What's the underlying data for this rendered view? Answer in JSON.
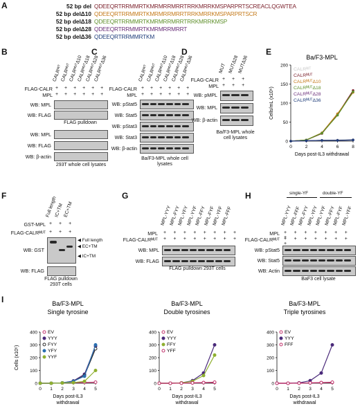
{
  "panels": {
    "A": "A",
    "B": "B",
    "C": "C",
    "D": "D",
    "E": "E",
    "F": "F",
    "G": "G",
    "H": "H",
    "I": "I"
  },
  "panelA": {
    "rows": [
      {
        "label": "52 bp del",
        "seq": "QDEEQRTRRMMRTKMRMRRMRRTRRKMRRKMSPARPRTSCREACLQGWTEA",
        "color": "#7a1f2a"
      },
      {
        "label": "52 bp delΔ10",
        "seq": "QDEEQRTRRMMRTKMRMRRMRRTRRKMRRKMSPARPRTSCR",
        "color": "#c47a1a"
      },
      {
        "label": "52 bp delΔ18",
        "seq": "QDEEQRTRRMMRTKMRMRRMRRTRRKMRRKMSP",
        "color": "#5e8f2a"
      },
      {
        "label": "52 bp delΔ28",
        "seq": "QDEEQRTRRMMRTKMRMRRMRRT",
        "color": "#6a2f7a"
      },
      {
        "label": "52 bp delΔ36",
        "seq": "QDEEQRTRRMMRTKM",
        "color": "#1f3d7a"
      }
    ]
  },
  "panelB": {
    "lanes": [
      "CALRᵂᵀ",
      "CALRᴹᵁᵀ",
      "CALRᴹᵁᵀΔ10",
      "CALRᴹᵁᵀΔ18",
      "CALRᴹᵁᵀΔ28",
      "CALRᴹᵁᵀΔ36"
    ],
    "flag": "FLAG-CALR",
    "mpl": "MPL",
    "pm": "+ + + + + +",
    "wb1": "WB: MPL",
    "wb2": "WB: FLAG",
    "cap1": "FLAG pulldown",
    "wb3": "WB: MPL",
    "wb4": "WB: FLAG",
    "wb5": "WB: β-actin",
    "cap2": "293T whole cell lysates"
  },
  "panelC": {
    "lanes": [
      "CALRᵂᵀ",
      "CALRᴹᵁᵀ",
      "CALRᴹᵁᵀΔ10",
      "CALRᴹᵁᵀΔ18",
      "CALRᴹᵁᵀΔ28",
      "CALRᴹᵁᵀΔ36"
    ],
    "flag": "FLAG-CALR",
    "mpl": "MPL",
    "pm": "+ + + + + +",
    "wbs": [
      "WB: pStat5",
      "WB: Stat5",
      "WB: pStat3",
      "WB: Stat3",
      "WB: β-actin"
    ],
    "cap": "Ba/F3-MPL whole cell lysates"
  },
  "panelD": {
    "lanes": [
      "MUT",
      "MUTΔ28",
      "MUTΔ36"
    ],
    "flag": "FLAG-CALR",
    "mpl": "MPL",
    "pm": "+ + +",
    "wbs": [
      "WB: pMPL",
      "WB: MPL",
      "WB: β-actin"
    ],
    "cap": "Ba/F3-MPL whole cell lysates"
  },
  "panelF": {
    "lanes": [
      "Full length",
      "IC+TM",
      "EC+TM"
    ],
    "gst": "GST-MPL",
    "flag": "FLAG-CALRᴹᵁᵀ",
    "pm1": "+ + +",
    "pm2": "+ + +",
    "wbs": [
      "WB: GST",
      "WB: FLAG"
    ],
    "arrows": [
      "Full length",
      "EC+TM",
      "IC+TM"
    ],
    "cap": "FLAG pulldown 293T cells"
  },
  "panelG": {
    "lanes": [
      "MPL-YYY",
      "MPL-FYY",
      "MPL-YFY",
      "MPL-YYF",
      "MPL-FFY",
      "MPL-FYF",
      "MPL-YFF",
      "MPL-FFF"
    ],
    "mpl": "MPL",
    "flag": "FLAG-CALRᴹᵁᵀ",
    "pm": "+ + + + + + + +",
    "wbs": [
      "WB: MPL",
      "WB: FLAG"
    ],
    "cap": "FLAG pulldown 293T cells"
  },
  "panelH": {
    "lanes": [
      "MPL-YYY",
      "MPL-FFF",
      "MPL-FYY",
      "MPL-YFY",
      "MPL-YYF",
      "MPL-FFY",
      "MPL-FYF",
      "MPL-YFF"
    ],
    "single": "single-YF",
    "double": "double-YF",
    "mpl": "MPL",
    "flag": "FLAG-CALRᴹᵁᵀ",
    "pm": "+ + + + + + + +",
    "wbs": [
      "WB: pStat5",
      "WB: Stat5",
      "WB: Actin"
    ],
    "cap": "BaF3 cell lysate"
  },
  "chartE": {
    "title": "Ba/F3-MPL",
    "ylabel": "Cells/mL (x10⁶)",
    "xlabel": "Days post-IL3 withdrawal",
    "yticks": [
      "0",
      "50",
      "100",
      "150",
      "200"
    ],
    "xticks": [
      "0",
      "2",
      "4",
      "6",
      "8"
    ]
  },
  "chartI": [
    {
      "title1": "Ba/F3-MPL",
      "title2": "Single tyrosine",
      "yticks": [
        "0",
        "100",
        "200",
        "300",
        "400"
      ],
      "xticks": [
        "0",
        "1",
        "2",
        "3",
        "4",
        "5"
      ]
    },
    {
      "title1": "Ba/F3-MPL",
      "title2": "Double tyrosines",
      "yticks": [
        "0",
        "100",
        "200",
        "300",
        "400"
      ],
      "xticks": [
        "0",
        "1",
        "2",
        "3",
        "4",
        "5"
      ]
    },
    {
      "title1": "Ba/F3-MPL",
      "title2": "Triple tyrosines",
      "yticks": [
        "0",
        "100",
        "200",
        "300",
        "400"
      ],
      "xticks": [
        "0",
        "1",
        "2",
        "3",
        "4",
        "5"
      ]
    }
  ],
  "chartIlabels": {
    "ylabel": "Cells (x10⁵)",
    "xlabel1": "Days post-IL3",
    "xlabel2": "withdrawal"
  },
  "chart_data": [
    {
      "type": "line",
      "title": "Ba/F3-MPL",
      "xlabel": "Days post-IL3 withdrawal",
      "ylabel": "Cells/mL (x10⁶)",
      "x": [
        0,
        2,
        4,
        6,
        8
      ],
      "xlim": [
        0,
        8
      ],
      "ylim": [
        0,
        200
      ],
      "series": [
        {
          "name": "CALRᵂᵀ",
          "color": "#c8c8c8",
          "values": [
            0,
            1,
            2,
            3,
            4
          ]
        },
        {
          "name": "CALRᴹᵁᵀ",
          "color": "#7a1f2a",
          "values": [
            0,
            3,
            20,
            70,
            133
          ]
        },
        {
          "name": "CALRᴹᵁᵀΔ10",
          "color": "#c47a1a",
          "values": [
            0,
            3,
            22,
            72,
            128
          ]
        },
        {
          "name": "CALRᴹᵁᵀΔ18",
          "color": "#5e8f2a",
          "values": [
            0,
            3,
            21,
            68,
            130
          ]
        },
        {
          "name": "CALRᴹᵁᵀΔ28",
          "color": "#6a2f7a",
          "values": [
            0,
            1,
            2,
            2,
            3
          ]
        },
        {
          "name": "CALRᴹᵁᵀΔ36",
          "color": "#1f3d7a",
          "values": [
            0,
            1,
            2,
            2,
            3
          ]
        }
      ]
    },
    {
      "type": "line",
      "title": "Ba/F3-MPL Single tyrosine",
      "x": [
        0,
        1,
        2,
        3,
        4,
        5
      ],
      "ylim": [
        0,
        400
      ],
      "series": [
        {
          "name": "EV",
          "color": "#c0306a",
          "values": [
            0,
            0,
            2,
            5,
            6,
            8
          ]
        },
        {
          "name": "YYY",
          "color": "#4a2a7a",
          "values": [
            0,
            0,
            3,
            18,
            70,
            290
          ]
        },
        {
          "name": "FYY",
          "color": "#2a2a2a",
          "values": [
            0,
            0,
            3,
            15,
            60,
            270
          ]
        },
        {
          "name": "YFY",
          "color": "#2a6fb0",
          "values": [
            0,
            0,
            3,
            15,
            55,
            300
          ]
        },
        {
          "name": "YYF",
          "color": "#8fb030",
          "values": [
            0,
            0,
            2,
            5,
            15,
            100
          ]
        }
      ]
    },
    {
      "type": "line",
      "title": "Ba/F3-MPL Double tyrosines",
      "x": [
        0,
        1,
        2,
        3,
        4,
        5
      ],
      "ylim": [
        0,
        400
      ],
      "series": [
        {
          "name": "EV",
          "color": "#c0306a",
          "values": [
            0,
            0,
            1,
            3,
            5,
            6
          ]
        },
        {
          "name": "YYY",
          "color": "#4a2a7a",
          "values": [
            0,
            0,
            3,
            20,
            80,
            300
          ]
        },
        {
          "name": "FFY",
          "color": "#8fb030",
          "values": [
            0,
            0,
            3,
            15,
            60,
            220
          ]
        },
        {
          "name": "YFF",
          "color": "#c0306a",
          "values": [
            0,
            0,
            1,
            3,
            5,
            8
          ]
        }
      ]
    },
    {
      "type": "line",
      "title": "Ba/F3-MPL Triple tyrosines",
      "x": [
        0,
        1,
        2,
        3,
        4,
        5
      ],
      "ylim": [
        0,
        400
      ],
      "series": [
        {
          "name": "EV",
          "color": "#c0306a",
          "values": [
            0,
            0,
            1,
            3,
            5,
            6
          ]
        },
        {
          "name": "YYY",
          "color": "#4a2a7a",
          "values": [
            0,
            0,
            3,
            20,
            80,
            300
          ]
        },
        {
          "name": "FFF",
          "color": "#c0306a",
          "values": [
            0,
            0,
            1,
            3,
            5,
            8
          ]
        }
      ]
    }
  ]
}
